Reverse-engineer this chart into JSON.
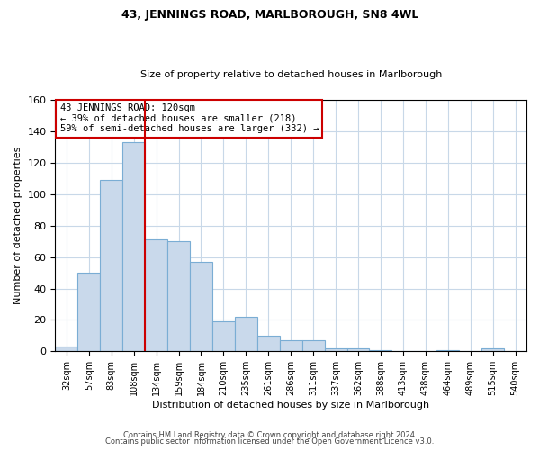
{
  "title": "43, JENNINGS ROAD, MARLBOROUGH, SN8 4WL",
  "subtitle": "Size of property relative to detached houses in Marlborough",
  "xlabel": "Distribution of detached houses by size in Marlborough",
  "ylabel": "Number of detached properties",
  "bar_labels": [
    "32sqm",
    "57sqm",
    "83sqm",
    "108sqm",
    "134sqm",
    "159sqm",
    "184sqm",
    "210sqm",
    "235sqm",
    "261sqm",
    "286sqm",
    "311sqm",
    "337sqm",
    "362sqm",
    "388sqm",
    "413sqm",
    "438sqm",
    "464sqm",
    "489sqm",
    "515sqm",
    "540sqm"
  ],
  "bar_values": [
    3,
    50,
    109,
    133,
    71,
    70,
    57,
    19,
    22,
    10,
    7,
    7,
    2,
    2,
    1,
    0,
    0,
    1,
    0,
    2,
    0
  ],
  "bar_color": "#c9d9eb",
  "bar_edgecolor": "#7aadd4",
  "vline_x_idx": 4,
  "vline_color": "#cc0000",
  "annotation_text": "43 JENNINGS ROAD: 120sqm\n← 39% of detached houses are smaller (218)\n59% of semi-detached houses are larger (332) →",
  "annotation_box_edgecolor": "#cc0000",
  "ylim": [
    0,
    160
  ],
  "yticks": [
    0,
    20,
    40,
    60,
    80,
    100,
    120,
    140,
    160
  ],
  "footer_line1": "Contains HM Land Registry data © Crown copyright and database right 2024.",
  "footer_line2": "Contains public sector information licensed under the Open Government Licence v3.0.",
  "background_color": "#ffffff",
  "grid_color": "#c8d8e8",
  "title_fontsize": 9,
  "subtitle_fontsize": 8
}
